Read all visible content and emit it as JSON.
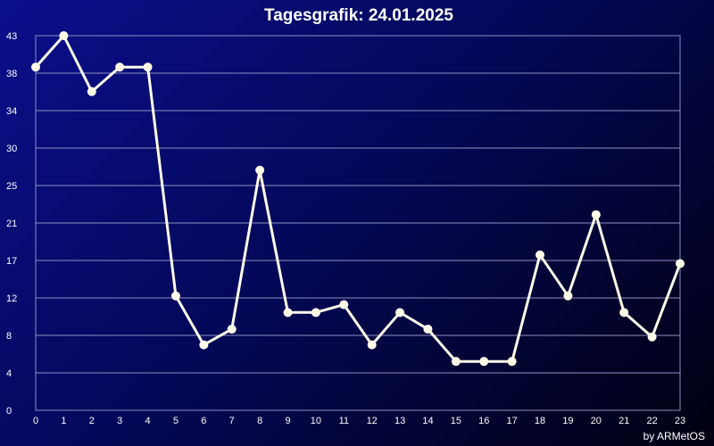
{
  "chart_data": {
    "type": "line",
    "title": "Tagesgrafik: 24.01.2025",
    "xlabel": "",
    "ylabel": "",
    "x": [
      0,
      1,
      2,
      3,
      4,
      5,
      6,
      7,
      8,
      9,
      10,
      11,
      12,
      13,
      14,
      15,
      16,
      17,
      18,
      19,
      20,
      21,
      22,
      23
    ],
    "series": [
      {
        "values": [
          39.3,
          42.9,
          36.5,
          39.3,
          39.3,
          13.1,
          7.5,
          9.3,
          27.5,
          11.2,
          11.2,
          12.1,
          7.5,
          11.2,
          9.3,
          5.6,
          5.6,
          5.6,
          17.8,
          13.1,
          22.4,
          11.2,
          8.4,
          16.8
        ]
      }
    ],
    "y_ticks": [
      "0",
      "4",
      "8",
      "12",
      "17",
      "21",
      "25",
      "30",
      "34",
      "38",
      "43"
    ],
    "x_ticks": [
      "0",
      "1",
      "2",
      "3",
      "4",
      "5",
      "6",
      "7",
      "8",
      "9",
      "10",
      "11",
      "12",
      "13",
      "14",
      "15",
      "16",
      "17",
      "18",
      "19",
      "20",
      "21",
      "22",
      "23"
    ],
    "ylim": [
      0,
      42.9
    ],
    "xlim": [
      0,
      23
    ],
    "grid": true,
    "legend": "none"
  },
  "credit": "by ARMetOS",
  "colors": {
    "line": "#fffbe8",
    "grid": "#8c8fc0",
    "text": "#ffffff"
  }
}
